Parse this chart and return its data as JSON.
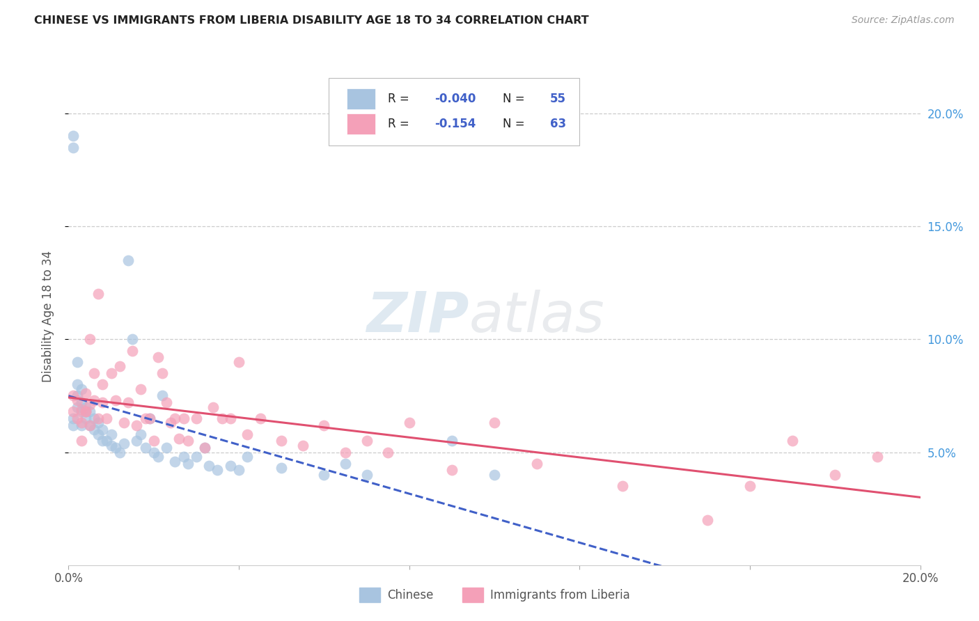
{
  "title": "CHINESE VS IMMIGRANTS FROM LIBERIA DISABILITY AGE 18 TO 34 CORRELATION CHART",
  "source": "Source: ZipAtlas.com",
  "ylabel_label": "Disability Age 18 to 34",
  "x_min": 0.0,
  "x_max": 0.2,
  "y_min": 0.0,
  "y_max": 0.22,
  "x_ticks": [
    0.0,
    0.04,
    0.08,
    0.12,
    0.16,
    0.2
  ],
  "x_tick_labels": [
    "0.0%",
    "",
    "",
    "",
    "",
    "20.0%"
  ],
  "y_ticks": [
    0.05,
    0.1,
    0.15,
    0.2
  ],
  "y_tick_labels": [
    "5.0%",
    "10.0%",
    "15.0%",
    "20.0%"
  ],
  "chinese_color": "#a8c4e0",
  "liberia_color": "#f4a0b8",
  "chinese_line_color": "#4060c8",
  "liberia_line_color": "#e05070",
  "R_chinese": "-0.040",
  "N_chinese": "55",
  "R_liberia": "-0.154",
  "N_liberia": "63",
  "stat_color": "#4060c8",
  "watermark_text": "ZIPatlas",
  "chinese_x": [
    0.001,
    0.001,
    0.002,
    0.002,
    0.002,
    0.003,
    0.003,
    0.003,
    0.004,
    0.004,
    0.005,
    0.005,
    0.006,
    0.006,
    0.007,
    0.007,
    0.008,
    0.008,
    0.009,
    0.01,
    0.01,
    0.011,
    0.012,
    0.013,
    0.014,
    0.015,
    0.016,
    0.017,
    0.018,
    0.019,
    0.02,
    0.021,
    0.022,
    0.023,
    0.025,
    0.027,
    0.028,
    0.03,
    0.032,
    0.033,
    0.035,
    0.038,
    0.04,
    0.042,
    0.05,
    0.06,
    0.065,
    0.07,
    0.09,
    0.1,
    0.004,
    0.003,
    0.002,
    0.001,
    0.001
  ],
  "chinese_y": [
    0.185,
    0.19,
    0.075,
    0.08,
    0.09,
    0.068,
    0.072,
    0.078,
    0.065,
    0.07,
    0.062,
    0.068,
    0.06,
    0.065,
    0.058,
    0.063,
    0.055,
    0.06,
    0.055,
    0.053,
    0.058,
    0.052,
    0.05,
    0.054,
    0.135,
    0.1,
    0.055,
    0.058,
    0.052,
    0.065,
    0.05,
    0.048,
    0.075,
    0.052,
    0.046,
    0.048,
    0.045,
    0.048,
    0.052,
    0.044,
    0.042,
    0.044,
    0.042,
    0.048,
    0.043,
    0.04,
    0.045,
    0.04,
    0.055,
    0.04,
    0.068,
    0.062,
    0.07,
    0.065,
    0.062
  ],
  "liberia_x": [
    0.001,
    0.001,
    0.002,
    0.002,
    0.003,
    0.003,
    0.004,
    0.004,
    0.005,
    0.005,
    0.006,
    0.006,
    0.007,
    0.007,
    0.008,
    0.008,
    0.009,
    0.01,
    0.011,
    0.012,
    0.013,
    0.014,
    0.015,
    0.016,
    0.017,
    0.018,
    0.019,
    0.02,
    0.021,
    0.022,
    0.023,
    0.024,
    0.025,
    0.026,
    0.027,
    0.028,
    0.03,
    0.032,
    0.034,
    0.036,
    0.038,
    0.04,
    0.042,
    0.045,
    0.05,
    0.055,
    0.06,
    0.065,
    0.07,
    0.075,
    0.08,
    0.09,
    0.1,
    0.11,
    0.13,
    0.15,
    0.16,
    0.17,
    0.18,
    0.19,
    0.003,
    0.004,
    0.005
  ],
  "liberia_y": [
    0.075,
    0.068,
    0.073,
    0.065,
    0.069,
    0.063,
    0.076,
    0.068,
    0.071,
    0.062,
    0.085,
    0.073,
    0.12,
    0.065,
    0.08,
    0.072,
    0.065,
    0.085,
    0.073,
    0.088,
    0.063,
    0.072,
    0.095,
    0.062,
    0.078,
    0.065,
    0.065,
    0.055,
    0.092,
    0.085,
    0.072,
    0.063,
    0.065,
    0.056,
    0.065,
    0.055,
    0.065,
    0.052,
    0.07,
    0.065,
    0.065,
    0.09,
    0.058,
    0.065,
    0.055,
    0.053,
    0.062,
    0.05,
    0.055,
    0.05,
    0.063,
    0.042,
    0.063,
    0.045,
    0.035,
    0.02,
    0.035,
    0.055,
    0.04,
    0.048,
    0.055,
    0.068,
    0.1
  ]
}
